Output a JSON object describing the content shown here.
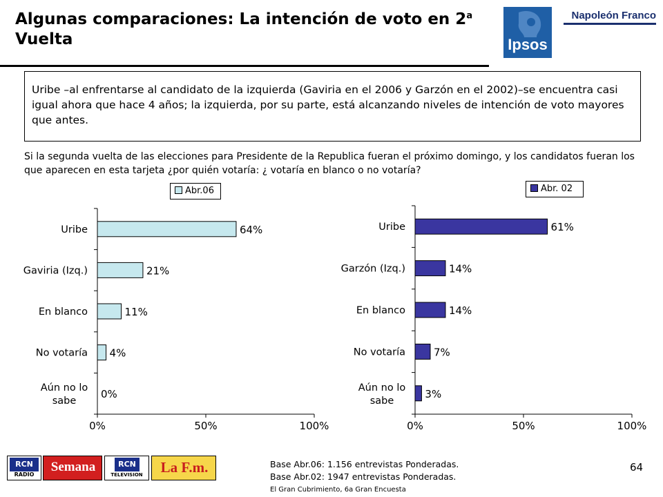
{
  "header": {
    "title": "Algunas comparaciones: La intención de voto en 2",
    "title_sup": "a",
    "title_line2": "Vuelta",
    "brand_ipsos": "Ipsos",
    "brand_nf": "Napoleón Franco",
    "brand_color": "#1f5fa6"
  },
  "summary": "Uribe –al enfrentarse al candidato de la izquierda (Gaviria en el 2006 y Garzón en el 2002)–se encuentra casi igual ahora que hace 4 años; la izquierda, por su parte, está alcanzando niveles de intención de voto mayores que antes.",
  "question": "Si la segunda vuelta de las elecciones para Presidente de la Republica fueran el próximo domingo, y los candidatos fueran los que aparecen en esta tarjeta ¿por quién votaría: ¿ votaría en blanco o no votaría?",
  "chart_data": [
    {
      "type": "bar",
      "orientation": "horizontal",
      "categories": [
        "Uribe",
        "Gaviria (Izq.)",
        "En blanco",
        "No votaría",
        "Aún no lo sabe"
      ],
      "series": [
        {
          "name": "Abr.06",
          "values": [
            64,
            21,
            11,
            4,
            0
          ],
          "color": "#c6e8ee"
        }
      ],
      "data_labels": [
        "64%",
        "21%",
        "11%",
        "4%",
        "0%"
      ],
      "xlim": [
        0,
        100
      ],
      "xticks": [
        "0%",
        "50%",
        "100%"
      ],
      "legend": "top-right",
      "grid": false
    },
    {
      "type": "bar",
      "orientation": "horizontal",
      "categories": [
        "Uribe",
        "Garzón (Izq.)",
        "En blanco",
        "No votaría",
        "Aún no lo sabe"
      ],
      "series": [
        {
          "name": "Abr. 02",
          "values": [
            61,
            14,
            14,
            7,
            3
          ],
          "color": "#3a36a0"
        }
      ],
      "data_labels": [
        "61%",
        "14%",
        "14%",
        "7%",
        "3%"
      ],
      "xlim": [
        0,
        100
      ],
      "xticks": [
        "0%",
        "50%",
        "100%"
      ],
      "legend": "top-right",
      "grid": false
    }
  ],
  "base": [
    "Base Abr.06: 1.156 entrevistas Ponderadas.",
    "Base Abr.02: 1947 entrevistas Ponderadas."
  ],
  "page_number": "64",
  "footer": "El Gran Cubrimiento, 6a Gran Encuesta",
  "media_logos": [
    {
      "icon": "rcn-radio-logo",
      "top": "RCN",
      "bottom": "RADIO"
    },
    {
      "icon": "semana-logo",
      "text": "Semana"
    },
    {
      "icon": "rcn-television-logo",
      "top": "RCN",
      "bottom": "TELEVISION"
    },
    {
      "icon": "la-fm-logo",
      "text": "La F.m."
    }
  ]
}
